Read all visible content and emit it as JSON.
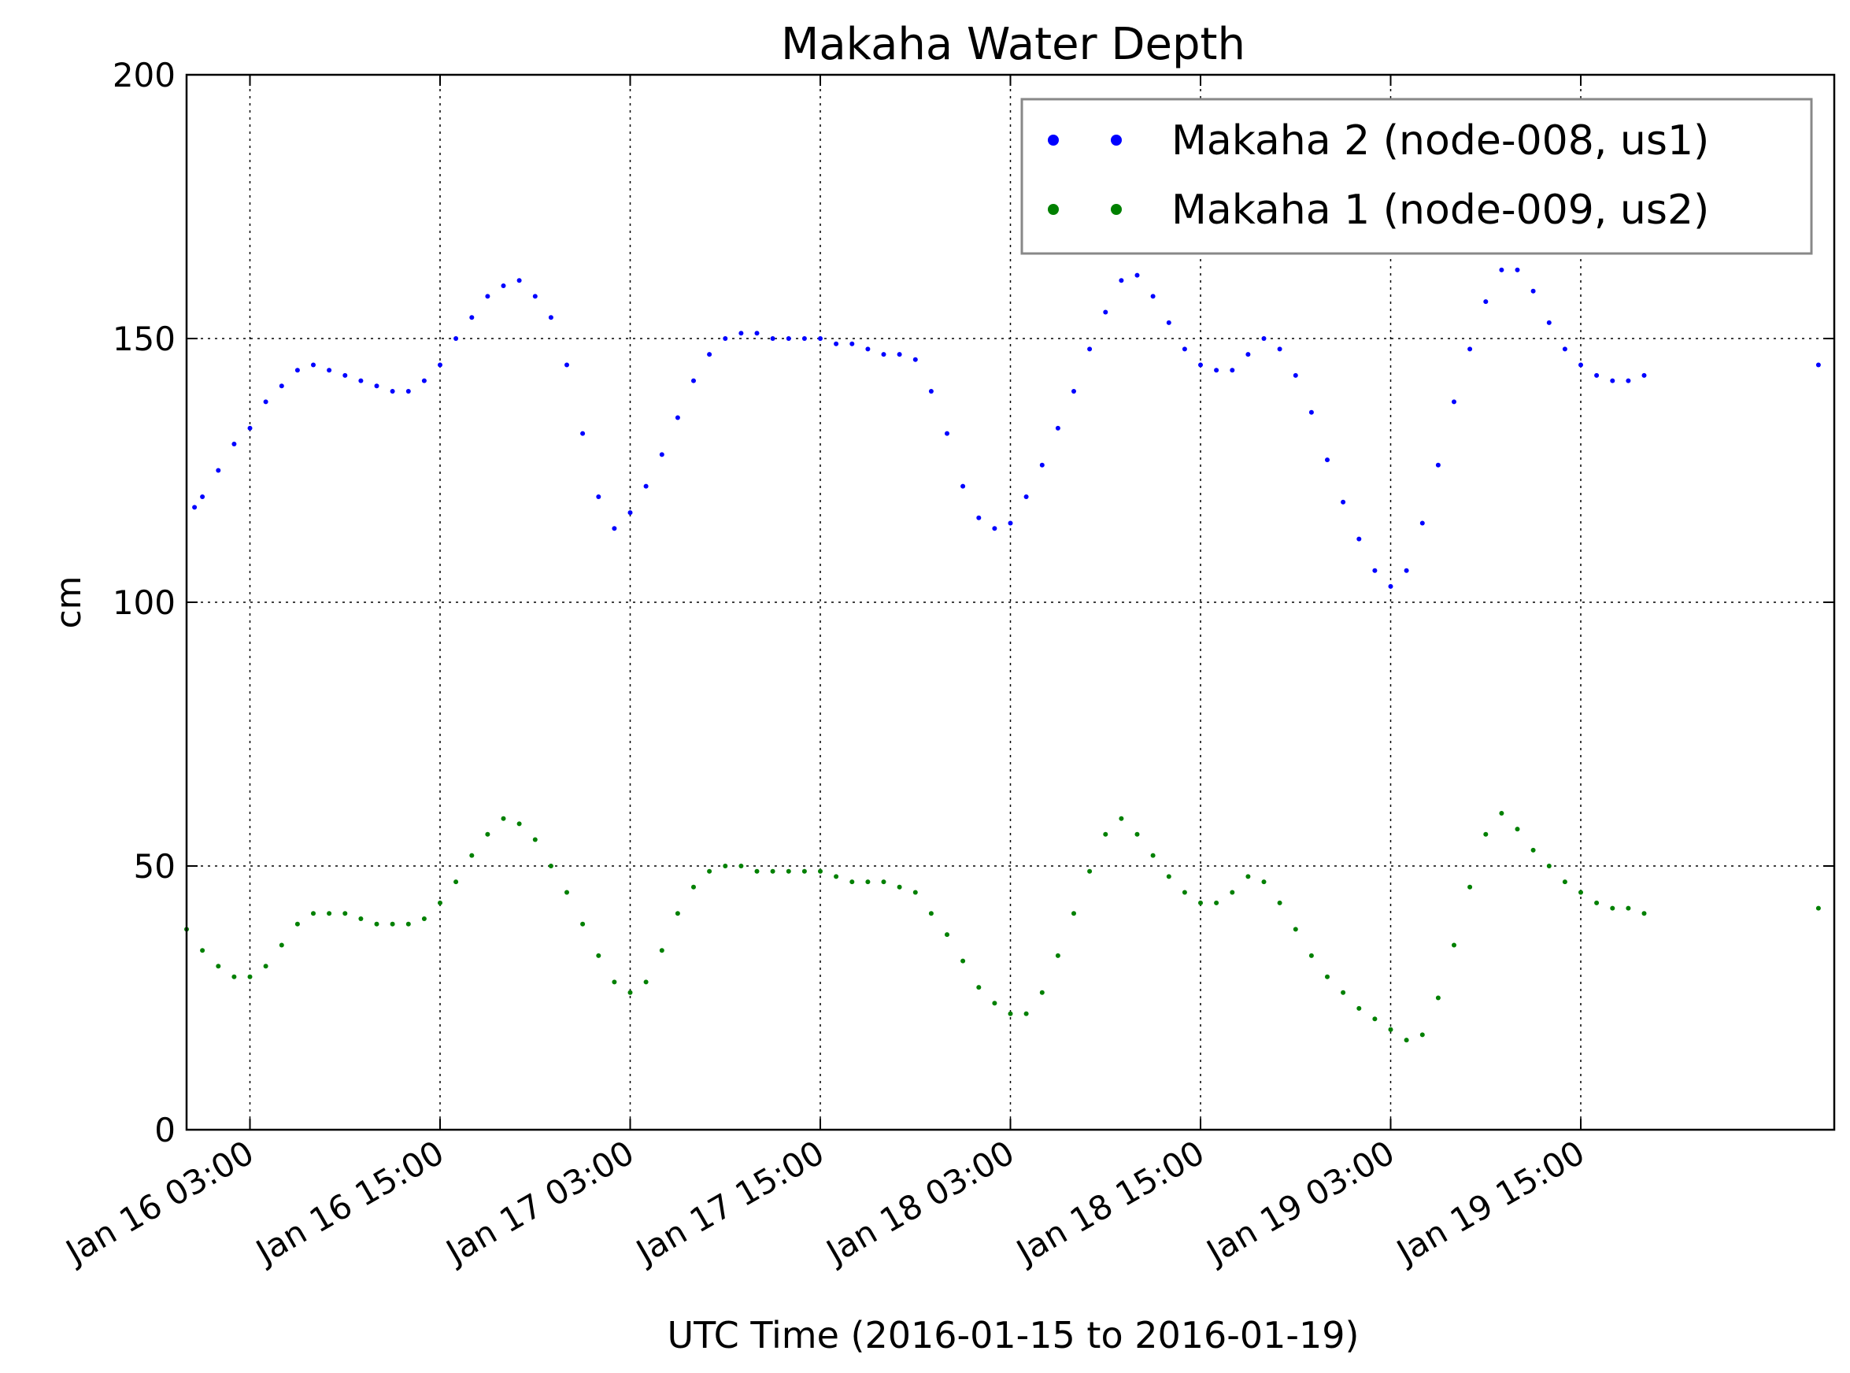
{
  "chart_data": {
    "type": "scatter",
    "title": "Makaha Water Depth",
    "xlabel": "UTC Time (2016-01-15 to 2016-01-19)",
    "ylabel": "cm",
    "x_range": [
      "2016-01-15T23:00",
      "2016-01-20T07:00"
    ],
    "ylim": [
      0,
      200
    ],
    "yticks": [
      0,
      50,
      100,
      150,
      200
    ],
    "xticks": [
      {
        "t": "2016-01-16T03:00",
        "label": "Jan 16 03:00"
      },
      {
        "t": "2016-01-16T15:00",
        "label": "Jan 16 15:00"
      },
      {
        "t": "2016-01-17T03:00",
        "label": "Jan 17 03:00"
      },
      {
        "t": "2016-01-17T15:00",
        "label": "Jan 17 15:00"
      },
      {
        "t": "2016-01-18T03:00",
        "label": "Jan 18 03:00"
      },
      {
        "t": "2016-01-18T15:00",
        "label": "Jan 18 15:00"
      },
      {
        "t": "2016-01-19T03:00",
        "label": "Jan 19 03:00"
      },
      {
        "t": "2016-01-19T15:00",
        "label": "Jan 19 15:00"
      }
    ],
    "grid": true,
    "legend_position": "top-right",
    "series": [
      {
        "name": "Makaha 2 (node-008, us1)",
        "color": "#0000ff",
        "points": [
          [
            "2016-01-15T23:30",
            118
          ],
          [
            "2016-01-16T00:00",
            120
          ],
          [
            "2016-01-16T01:00",
            125
          ],
          [
            "2016-01-16T02:00",
            130
          ],
          [
            "2016-01-16T03:00",
            133
          ],
          [
            "2016-01-16T04:00",
            138
          ],
          [
            "2016-01-16T05:00",
            141
          ],
          [
            "2016-01-16T06:00",
            144
          ],
          [
            "2016-01-16T07:00",
            145
          ],
          [
            "2016-01-16T08:00",
            144
          ],
          [
            "2016-01-16T09:00",
            143
          ],
          [
            "2016-01-16T10:00",
            142
          ],
          [
            "2016-01-16T11:00",
            141
          ],
          [
            "2016-01-16T12:00",
            140
          ],
          [
            "2016-01-16T13:00",
            140
          ],
          [
            "2016-01-16T14:00",
            142
          ],
          [
            "2016-01-16T15:00",
            145
          ],
          [
            "2016-01-16T16:00",
            150
          ],
          [
            "2016-01-16T17:00",
            154
          ],
          [
            "2016-01-16T18:00",
            158
          ],
          [
            "2016-01-16T19:00",
            160
          ],
          [
            "2016-01-16T20:00",
            161
          ],
          [
            "2016-01-16T21:00",
            158
          ],
          [
            "2016-01-16T22:00",
            154
          ],
          [
            "2016-01-16T23:00",
            145
          ],
          [
            "2016-01-17T00:00",
            132
          ],
          [
            "2016-01-17T01:00",
            120
          ],
          [
            "2016-01-17T02:00",
            114
          ],
          [
            "2016-01-17T03:00",
            117
          ],
          [
            "2016-01-17T04:00",
            122
          ],
          [
            "2016-01-17T05:00",
            128
          ],
          [
            "2016-01-17T06:00",
            135
          ],
          [
            "2016-01-17T07:00",
            142
          ],
          [
            "2016-01-17T08:00",
            147
          ],
          [
            "2016-01-17T09:00",
            150
          ],
          [
            "2016-01-17T10:00",
            151
          ],
          [
            "2016-01-17T11:00",
            151
          ],
          [
            "2016-01-17T12:00",
            150
          ],
          [
            "2016-01-17T13:00",
            150
          ],
          [
            "2016-01-17T14:00",
            150
          ],
          [
            "2016-01-17T15:00",
            150
          ],
          [
            "2016-01-17T16:00",
            149
          ],
          [
            "2016-01-17T17:00",
            149
          ],
          [
            "2016-01-17T18:00",
            148
          ],
          [
            "2016-01-17T19:00",
            147
          ],
          [
            "2016-01-17T20:00",
            147
          ],
          [
            "2016-01-17T21:00",
            146
          ],
          [
            "2016-01-17T22:00",
            140
          ],
          [
            "2016-01-17T23:00",
            132
          ],
          [
            "2016-01-18T00:00",
            122
          ],
          [
            "2016-01-18T01:00",
            116
          ],
          [
            "2016-01-18T02:00",
            114
          ],
          [
            "2016-01-18T03:00",
            115
          ],
          [
            "2016-01-18T04:00",
            120
          ],
          [
            "2016-01-18T05:00",
            126
          ],
          [
            "2016-01-18T06:00",
            133
          ],
          [
            "2016-01-18T07:00",
            140
          ],
          [
            "2016-01-18T08:00",
            148
          ],
          [
            "2016-01-18T09:00",
            155
          ],
          [
            "2016-01-18T10:00",
            161
          ],
          [
            "2016-01-18T11:00",
            162
          ],
          [
            "2016-01-18T12:00",
            158
          ],
          [
            "2016-01-18T13:00",
            153
          ],
          [
            "2016-01-18T14:00",
            148
          ],
          [
            "2016-01-18T15:00",
            145
          ],
          [
            "2016-01-18T16:00",
            144
          ],
          [
            "2016-01-18T17:00",
            144
          ],
          [
            "2016-01-18T18:00",
            147
          ],
          [
            "2016-01-18T19:00",
            150
          ],
          [
            "2016-01-18T20:00",
            148
          ],
          [
            "2016-01-18T21:00",
            143
          ],
          [
            "2016-01-18T22:00",
            136
          ],
          [
            "2016-01-18T23:00",
            127
          ],
          [
            "2016-01-19T00:00",
            119
          ],
          [
            "2016-01-19T01:00",
            112
          ],
          [
            "2016-01-19T02:00",
            106
          ],
          [
            "2016-01-19T03:00",
            103
          ],
          [
            "2016-01-19T04:00",
            106
          ],
          [
            "2016-01-19T05:00",
            115
          ],
          [
            "2016-01-19T06:00",
            126
          ],
          [
            "2016-01-19T07:00",
            138
          ],
          [
            "2016-01-19T08:00",
            148
          ],
          [
            "2016-01-19T09:00",
            157
          ],
          [
            "2016-01-19T10:00",
            163
          ],
          [
            "2016-01-19T11:00",
            163
          ],
          [
            "2016-01-19T12:00",
            159
          ],
          [
            "2016-01-19T13:00",
            153
          ],
          [
            "2016-01-19T14:00",
            148
          ],
          [
            "2016-01-19T15:00",
            145
          ],
          [
            "2016-01-19T16:00",
            143
          ],
          [
            "2016-01-19T17:00",
            142
          ],
          [
            "2016-01-19T18:00",
            142
          ],
          [
            "2016-01-19T19:00",
            143
          ],
          [
            "2016-01-20T06:00",
            145
          ]
        ]
      },
      {
        "name": "Makaha 1 (node-009, us2)",
        "color": "#008000",
        "points": [
          [
            "2016-01-15T23:00",
            38
          ],
          [
            "2016-01-16T00:00",
            34
          ],
          [
            "2016-01-16T01:00",
            31
          ],
          [
            "2016-01-16T02:00",
            29
          ],
          [
            "2016-01-16T03:00",
            29
          ],
          [
            "2016-01-16T04:00",
            31
          ],
          [
            "2016-01-16T05:00",
            35
          ],
          [
            "2016-01-16T06:00",
            39
          ],
          [
            "2016-01-16T07:00",
            41
          ],
          [
            "2016-01-16T08:00",
            41
          ],
          [
            "2016-01-16T09:00",
            41
          ],
          [
            "2016-01-16T10:00",
            40
          ],
          [
            "2016-01-16T11:00",
            39
          ],
          [
            "2016-01-16T12:00",
            39
          ],
          [
            "2016-01-16T13:00",
            39
          ],
          [
            "2016-01-16T14:00",
            40
          ],
          [
            "2016-01-16T15:00",
            43
          ],
          [
            "2016-01-16T16:00",
            47
          ],
          [
            "2016-01-16T17:00",
            52
          ],
          [
            "2016-01-16T18:00",
            56
          ],
          [
            "2016-01-16T19:00",
            59
          ],
          [
            "2016-01-16T20:00",
            58
          ],
          [
            "2016-01-16T21:00",
            55
          ],
          [
            "2016-01-16T22:00",
            50
          ],
          [
            "2016-01-16T23:00",
            45
          ],
          [
            "2016-01-17T00:00",
            39
          ],
          [
            "2016-01-17T01:00",
            33
          ],
          [
            "2016-01-17T02:00",
            28
          ],
          [
            "2016-01-17T03:00",
            26
          ],
          [
            "2016-01-17T04:00",
            28
          ],
          [
            "2016-01-17T05:00",
            34
          ],
          [
            "2016-01-17T06:00",
            41
          ],
          [
            "2016-01-17T07:00",
            46
          ],
          [
            "2016-01-17T08:00",
            49
          ],
          [
            "2016-01-17T09:00",
            50
          ],
          [
            "2016-01-17T10:00",
            50
          ],
          [
            "2016-01-17T11:00",
            49
          ],
          [
            "2016-01-17T12:00",
            49
          ],
          [
            "2016-01-17T13:00",
            49
          ],
          [
            "2016-01-17T14:00",
            49
          ],
          [
            "2016-01-17T15:00",
            49
          ],
          [
            "2016-01-17T16:00",
            48
          ],
          [
            "2016-01-17T17:00",
            47
          ],
          [
            "2016-01-17T18:00",
            47
          ],
          [
            "2016-01-17T19:00",
            47
          ],
          [
            "2016-01-17T20:00",
            46
          ],
          [
            "2016-01-17T21:00",
            45
          ],
          [
            "2016-01-17T22:00",
            41
          ],
          [
            "2016-01-17T23:00",
            37
          ],
          [
            "2016-01-18T00:00",
            32
          ],
          [
            "2016-01-18T01:00",
            27
          ],
          [
            "2016-01-18T02:00",
            24
          ],
          [
            "2016-01-18T03:00",
            22
          ],
          [
            "2016-01-18T04:00",
            22
          ],
          [
            "2016-01-18T05:00",
            26
          ],
          [
            "2016-01-18T06:00",
            33
          ],
          [
            "2016-01-18T07:00",
            41
          ],
          [
            "2016-01-18T08:00",
            49
          ],
          [
            "2016-01-18T09:00",
            56
          ],
          [
            "2016-01-18T10:00",
            59
          ],
          [
            "2016-01-18T11:00",
            56
          ],
          [
            "2016-01-18T12:00",
            52
          ],
          [
            "2016-01-18T13:00",
            48
          ],
          [
            "2016-01-18T14:00",
            45
          ],
          [
            "2016-01-18T15:00",
            43
          ],
          [
            "2016-01-18T16:00",
            43
          ],
          [
            "2016-01-18T17:00",
            45
          ],
          [
            "2016-01-18T18:00",
            48
          ],
          [
            "2016-01-18T19:00",
            47
          ],
          [
            "2016-01-18T20:00",
            43
          ],
          [
            "2016-01-18T21:00",
            38
          ],
          [
            "2016-01-18T22:00",
            33
          ],
          [
            "2016-01-18T23:00",
            29
          ],
          [
            "2016-01-19T00:00",
            26
          ],
          [
            "2016-01-19T01:00",
            23
          ],
          [
            "2016-01-19T02:00",
            21
          ],
          [
            "2016-01-19T03:00",
            19
          ],
          [
            "2016-01-19T04:00",
            17
          ],
          [
            "2016-01-19T05:00",
            18
          ],
          [
            "2016-01-19T06:00",
            25
          ],
          [
            "2016-01-19T07:00",
            35
          ],
          [
            "2016-01-19T08:00",
            46
          ],
          [
            "2016-01-19T09:00",
            56
          ],
          [
            "2016-01-19T10:00",
            60
          ],
          [
            "2016-01-19T11:00",
            57
          ],
          [
            "2016-01-19T12:00",
            53
          ],
          [
            "2016-01-19T13:00",
            50
          ],
          [
            "2016-01-19T14:00",
            47
          ],
          [
            "2016-01-19T15:00",
            45
          ],
          [
            "2016-01-19T16:00",
            43
          ],
          [
            "2016-01-19T17:00",
            42
          ],
          [
            "2016-01-19T18:00",
            42
          ],
          [
            "2016-01-19T19:00",
            41
          ],
          [
            "2016-01-20T06:00",
            42
          ]
        ]
      }
    ]
  }
}
